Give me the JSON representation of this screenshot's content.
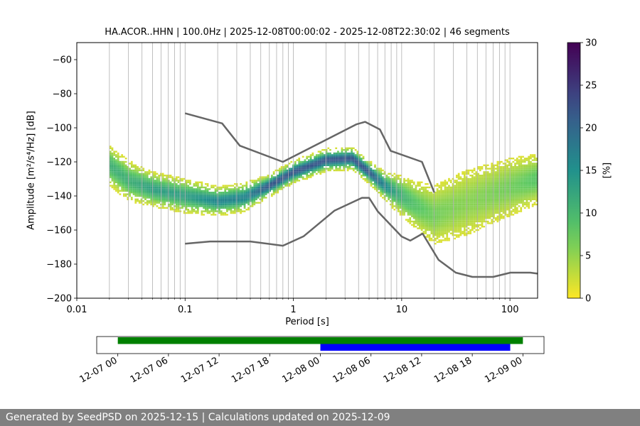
{
  "footer": {
    "text": "Generated by SeedPSD on 2025-12-15 | Calculations updated on 2025-12-09"
  },
  "chart_data": [
    {
      "type": "heatmap",
      "title": "HA.ACOR..HHN | 100.0Hz | 2025-12-08T00:00:02 - 2025-12-08T22:30:02 | 46 segments",
      "xlabel": "Period [s]",
      "ylabel": "Amplitude [m²/s⁴/Hz] [dB]",
      "xscale": "log",
      "xlim": [
        0.01,
        180
      ],
      "ylim": [
        -200,
        -50
      ],
      "x_ticks": [
        0.01,
        0.1,
        1,
        10,
        100
      ],
      "x_tick_labels": [
        "0.01",
        "0.1",
        "1",
        "10",
        "100"
      ],
      "y_ticks": [
        -200,
        -180,
        -160,
        -140,
        -120,
        -100,
        -80,
        -60
      ],
      "y_tick_labels": [
        "−200",
        "−180",
        "−160",
        "−140",
        "−120",
        "−100",
        "−80",
        "−60"
      ],
      "grid": "vertical",
      "colormap": "viridis_r",
      "colorbar": {
        "label": "[%]",
        "range": [
          0,
          30
        ],
        "ticks": [
          0,
          5,
          10,
          15,
          20,
          25,
          30
        ]
      },
      "high_noise_model": {
        "period": [
          0.1,
          0.22,
          0.32,
          0.8,
          3.8,
          4.6,
          6.3,
          7.9,
          15.4,
          20
        ],
        "db": [
          -91.5,
          -97.4,
          -110.5,
          -120,
          -98,
          -96.5,
          -101,
          -113.5,
          -120,
          -138
        ]
      },
      "low_noise_model": {
        "period": [
          0.1,
          0.17,
          0.4,
          0.8,
          1.24,
          2.4,
          4.3,
          5,
          6,
          10,
          12,
          15.6,
          21.9,
          31.6,
          45,
          70,
          101,
          154,
          180
        ],
        "db": [
          -168,
          -166.7,
          -166.7,
          -169.2,
          -163.7,
          -148.6,
          -141.1,
          -141.1,
          -149,
          -163.8,
          -166.2,
          -162.1,
          -177.5,
          -185,
          -187.5,
          -187.5,
          -185,
          -185,
          -185.6
        ]
      },
      "psd_mode": {
        "period": [
          0.02,
          0.03,
          0.05,
          0.1,
          0.2,
          0.35,
          0.6,
          1,
          2,
          3.5,
          5,
          7,
          10,
          14,
          20,
          40,
          100,
          180
        ],
        "db": [
          -122,
          -131,
          -136,
          -140,
          -143,
          -141,
          -134,
          -126,
          -119,
          -118,
          -126,
          -134,
          -140,
          -146,
          -151,
          -144,
          -135,
          -130
        ],
        "spread_db": [
          6,
          6,
          5,
          5,
          4,
          4,
          3,
          3,
          3,
          3,
          3,
          4,
          6,
          8,
          10,
          12,
          10,
          8
        ]
      }
    },
    {
      "type": "bar",
      "x_ticks": [
        "12-07 00",
        "12-07 06",
        "12-07 12",
        "12-07 18",
        "12-08 00",
        "12-08 06",
        "12-08 12",
        "12-08 18",
        "12-09 00"
      ],
      "series": [
        {
          "color": "#008000",
          "start": "12-07 00",
          "end": "12-09 00"
        },
        {
          "color": "#0000ff",
          "start": "12-08 00",
          "end": "12-08 22:30"
        }
      ],
      "xlim": [
        "12-06 21:30",
        "12-09 02:30"
      ]
    }
  ]
}
